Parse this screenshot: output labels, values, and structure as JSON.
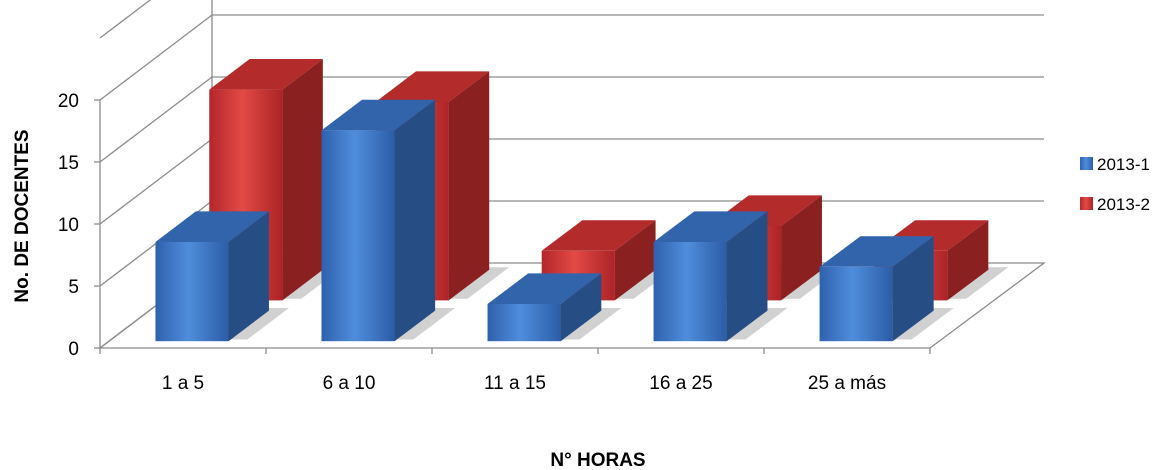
{
  "chart_data": {
    "type": "bar",
    "categories": [
      "1 a 5",
      "6 a 10",
      "11 a 15",
      "16 a 25",
      "25 a más"
    ],
    "series": [
      {
        "name": "2013-1",
        "values": [
          8,
          17,
          3,
          8,
          6
        ],
        "color": "#3a72c4"
      },
      {
        "name": "2013-2",
        "values": [
          17,
          16,
          4,
          6,
          4
        ],
        "color": "#cc3230"
      }
    ],
    "ylim": [
      0,
      20
    ],
    "yticks": [
      0,
      5,
      10,
      15,
      20
    ],
    "xlabel": "N° HORAS",
    "ylabel": "No. DE DOCENTES",
    "grid": true,
    "legend": "right",
    "style": "3d-clustered-column"
  }
}
